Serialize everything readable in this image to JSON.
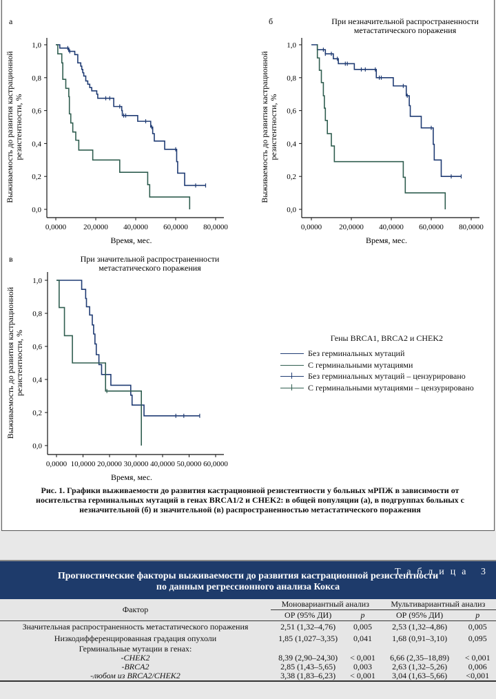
{
  "figure": {
    "panels": [
      {
        "letter": "а",
        "title": [
          "",
          ""
        ],
        "ylabel": [
          "Выживаемость до развития кастрационной",
          "резистентности, %"
        ],
        "xlabel": "Время, мес."
      },
      {
        "letter": "б",
        "title": [
          "При незначительной распространенности",
          "метастатического поражения"
        ],
        "ylabel": [
          "Выживаемость до развития кастрационной",
          "резистентности, %"
        ],
        "xlabel": "Время, мес."
      },
      {
        "letter": "в",
        "title": [
          "При значительной распространенности",
          "метастатического поражения"
        ],
        "ylabel": [
          "Выживаемость до развития кастрационной",
          "резистентности, %"
        ],
        "xlabel": "Время, мес."
      }
    ],
    "legend": {
      "title": "Гены BRCA1, BRCA2 и CHEK2",
      "items": [
        "Без герминальных мутаций",
        "С герминальными мутациями",
        "Без герминальных мутаций – цензурировано",
        "С герминальными мутациями – цензурировано"
      ]
    },
    "caption": "Рис. 1. Графики выживаемости до развития кастрационной резистентности у больных мРПЖ в зависимости от носительства герминальных мутаций в генах BRCA1/2 и CHEK2: в общей популяции (а), в подгруппах больных с незначительной (б) и значительной (в) распространенностью метастатического поражения"
  },
  "colors": {
    "no_mut": "#1f3b73",
    "mut": "#2f5d4f",
    "table_header": "#1e3b6b"
  },
  "chart_data": [
    {
      "type": "line",
      "panel": "а",
      "xlim": [
        0,
        80
      ],
      "ylim": [
        0,
        1
      ],
      "xticks": [
        "0,0000",
        "20,0000",
        "40,0000",
        "60,0000",
        "80,0000"
      ],
      "xtick_values": [
        0,
        20,
        40,
        60,
        80
      ],
      "yticks": [
        "0,0",
        "0,2",
        "0,4",
        "0,6",
        "0,8",
        "1,0"
      ],
      "ytick_values": [
        0,
        0.2,
        0.4,
        0.6,
        0.8,
        1
      ],
      "series": [
        {
          "name": "Без герминальных мутаций",
          "steps": [
            [
              0,
              1
            ],
            [
              2,
              0.98
            ],
            [
              6.5,
              0.96
            ],
            [
              9.5,
              0.94
            ],
            [
              11,
              0.89
            ],
            [
              12.5,
              0.87
            ],
            [
              13,
              0.85
            ],
            [
              13.5,
              0.83
            ],
            [
              14,
              0.81
            ],
            [
              15,
              0.78
            ],
            [
              16,
              0.76
            ],
            [
              17,
              0.74
            ],
            [
              18,
              0.72
            ],
            [
              20.5,
              0.7
            ],
            [
              21,
              0.675
            ],
            [
              29,
              0.625
            ],
            [
              33,
              0.6
            ],
            [
              33.3,
              0.57
            ],
            [
              41,
              0.535
            ],
            [
              47.5,
              0.5
            ],
            [
              48.5,
              0.46
            ],
            [
              49.3,
              0.415
            ],
            [
              54.5,
              0.365
            ],
            [
              60.5,
              0.29
            ],
            [
              61,
              0.22
            ],
            [
              64.5,
              0.145
            ]
          ],
          "end": 75,
          "censored": [
            6,
            7,
            25,
            27,
            32,
            34,
            35,
            45,
            48,
            60,
            70,
            75
          ]
        },
        {
          "name": "С герминальными мутациями",
          "steps": [
            [
              0,
              1
            ],
            [
              1,
              0.945
            ],
            [
              3,
              0.89
            ],
            [
              3.5,
              0.79
            ],
            [
              5,
              0.735
            ],
            [
              6.5,
              0.685
            ],
            [
              6.8,
              0.58
            ],
            [
              7.5,
              0.525
            ],
            [
              8.5,
              0.47
            ],
            [
              10,
              0.42
            ],
            [
              11.5,
              0.36
            ],
            [
              18.5,
              0.3
            ],
            [
              32,
              0.225
            ],
            [
              46,
              0.15
            ],
            [
              47,
              0.075
            ],
            [
              67,
              0
            ]
          ],
          "end": 67,
          "censored": []
        }
      ]
    },
    {
      "type": "line",
      "panel": "б",
      "xlim": [
        0,
        80
      ],
      "ylim": [
        0,
        1
      ],
      "xticks": [
        "0,0000",
        "20,0000",
        "40,0000",
        "60,0000",
        "80,0000"
      ],
      "xtick_values": [
        0,
        20,
        40,
        60,
        80
      ],
      "yticks": [
        "0,0",
        "0,2",
        "0,4",
        "0,6",
        "0,8",
        "1,0"
      ],
      "ytick_values": [
        0,
        0.2,
        0.4,
        0.6,
        0.8,
        1
      ],
      "series": [
        {
          "name": "Без герминальных мутаций",
          "steps": [
            [
              0,
              1
            ],
            [
              3,
              0.97
            ],
            [
              7,
              0.945
            ],
            [
              11,
              0.915
            ],
            [
              13.5,
              0.885
            ],
            [
              21.5,
              0.85
            ],
            [
              32.5,
              0.8
            ],
            [
              41,
              0.75
            ],
            [
              47.5,
              0.69
            ],
            [
              49,
              0.63
            ],
            [
              49.5,
              0.565
            ],
            [
              55,
              0.495
            ],
            [
              61,
              0.395
            ],
            [
              61.5,
              0.3
            ],
            [
              65,
              0.2
            ]
          ],
          "end": 75,
          "censored": [
            6,
            7,
            10,
            13,
            17,
            18,
            25,
            27,
            32,
            34,
            35,
            46,
            48,
            60,
            70,
            75
          ]
        },
        {
          "name": "С герминальными мутациями",
          "steps": [
            [
              2.8,
              1
            ],
            [
              3,
              0.92
            ],
            [
              4,
              0.845
            ],
            [
              5,
              0.77
            ],
            [
              6,
              0.69
            ],
            [
              6.5,
              0.615
            ],
            [
              7,
              0.54
            ],
            [
              8,
              0.46
            ],
            [
              10,
              0.385
            ],
            [
              11.5,
              0.29
            ],
            [
              46,
              0.195
            ],
            [
              47,
              0.1
            ],
            [
              67,
              0
            ]
          ],
          "end": 67,
          "censored": []
        }
      ]
    },
    {
      "type": "line",
      "panel": "в",
      "xlim": [
        0,
        60
      ],
      "ylim": [
        0,
        1
      ],
      "xticks": [
        "0,0000",
        "10,0000",
        "20,0000",
        "30,0000",
        "40,0000",
        "50,0000",
        "60,0000"
      ],
      "xtick_values": [
        0,
        10,
        20,
        30,
        40,
        50,
        60
      ],
      "yticks": [
        "0,0",
        "0,2",
        "0,4",
        "0,6",
        "0,8",
        "1,0"
      ],
      "ytick_values": [
        0,
        0.2,
        0.4,
        0.6,
        0.8,
        1
      ],
      "series": [
        {
          "name": "Без герминальных мутаций",
          "steps": [
            [
              0,
              1
            ],
            [
              9.5,
              0.945
            ],
            [
              11,
              0.89
            ],
            [
              11.3,
              0.84
            ],
            [
              12.5,
              0.79
            ],
            [
              13.5,
              0.73
            ],
            [
              14,
              0.675
            ],
            [
              14.5,
              0.615
            ],
            [
              15,
              0.55
            ],
            [
              16,
              0.49
            ],
            [
              17,
              0.43
            ],
            [
              20.5,
              0.365
            ],
            [
              28,
              0.305
            ],
            [
              28.5,
              0.245
            ],
            [
              33,
              0.18
            ]
          ],
          "end": 54,
          "censored": [
            45,
            48,
            54
          ]
        },
        {
          "name": "С герминальными мутациями",
          "steps": [
            [
              0,
              1
            ],
            [
              1,
              0.835
            ],
            [
              3,
              0.665
            ],
            [
              6,
              0.5
            ],
            [
              18.5,
              0.33
            ],
            [
              32,
              0
            ]
          ],
          "end": 32,
          "censored": [
            19
          ]
        }
      ]
    }
  ],
  "table": {
    "number": "Таблица 3",
    "title": [
      "Прогностические факторы выживаемости до развития кастрационной резистентности",
      "по данным регрессионного анализа Кокса"
    ],
    "col_factor": "Фактор",
    "col_mono": "Моновариантный анализ",
    "col_multi": "Мультивариантный анализ",
    "col_or": "ОР (95% ДИ)",
    "col_p": "p",
    "rows": [
      [
        "Значительная распространенность метастатического поражения",
        "2,51 (1,32–4,76)",
        "0,005",
        "2,53 (1,32–4,86)",
        "0,005"
      ],
      [
        "Низкодифференцированная градация опухоли",
        "1,85 (1,027–3,35)",
        "0,041",
        "1,68 (0,91–3,10)",
        "0,095"
      ],
      [
        "Герминальные мутации в генах:",
        "",
        "",
        "",
        ""
      ],
      [
        "-CHEK2",
        "8,39 (2,90–24,30)",
        "< 0,001",
        "6,66 (2,35–18,89)",
        "< 0,001"
      ],
      [
        "-BRCA2",
        "2,85 (1,43–5,65)",
        "0,003",
        "2,63 (1,32–5,26)",
        "0,006"
      ],
      [
        "-любом из BRCA2/CHEK2",
        "3,38 (1,83–6,23)",
        "< 0,001",
        "3,04 (1,63–5,66)",
        "<0,001"
      ]
    ]
  }
}
